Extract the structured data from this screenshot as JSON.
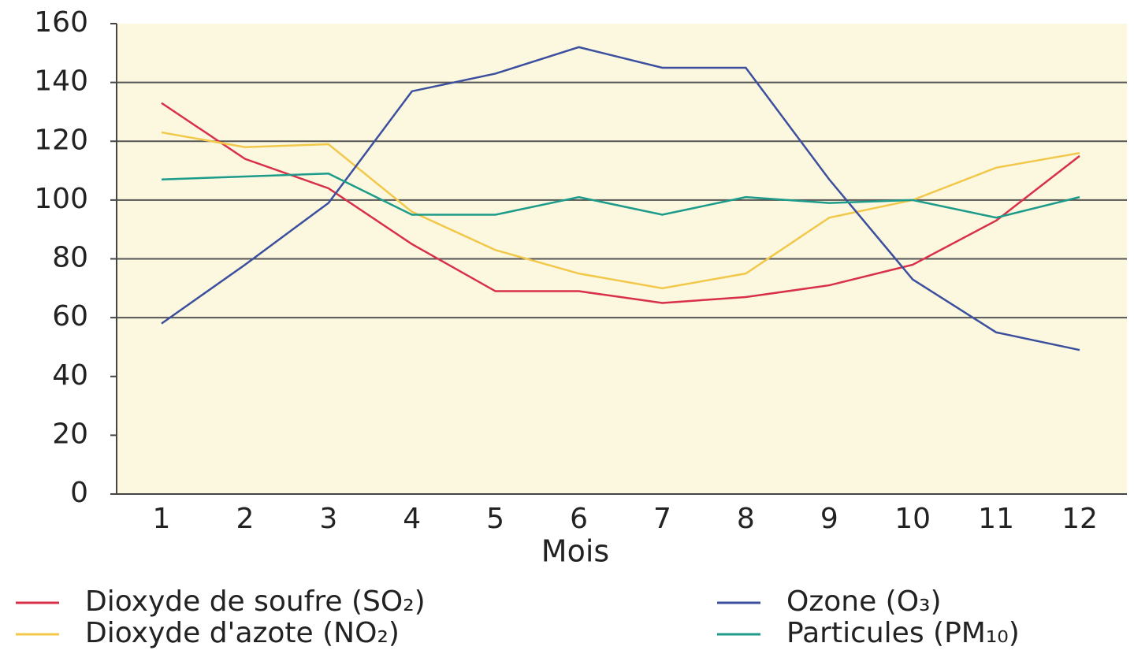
{
  "chart_data": {
    "type": "line",
    "x_label": "Mois",
    "categories": [
      "1",
      "2",
      "3",
      "4",
      "5",
      "6",
      "7",
      "8",
      "9",
      "10",
      "11",
      "12"
    ],
    "ylim": [
      0,
      160
    ],
    "yticks": [
      0,
      20,
      40,
      60,
      80,
      100,
      120,
      140,
      160
    ],
    "grid_lines": [
      60,
      80,
      100,
      120,
      140
    ],
    "series": [
      {
        "name": "Dioxyde de soufre (SO₂)",
        "color": "#d9304a",
        "values": [
          133,
          114,
          104,
          85,
          69,
          69,
          65,
          67,
          71,
          78,
          93,
          115
        ]
      },
      {
        "name": "Dioxyde d'azote (NO₂)",
        "color": "#f2c84b",
        "values": [
          123,
          118,
          119,
          96,
          83,
          75,
          70,
          75,
          94,
          100,
          111,
          116
        ]
      },
      {
        "name": "Ozone (O₃)",
        "color": "#3b4f9e",
        "values": [
          58,
          78,
          99,
          137,
          143,
          152,
          145,
          145,
          107,
          73,
          55,
          49
        ]
      },
      {
        "name": "Particules (PM₁₀)",
        "color": "#1c9a8a",
        "values": [
          107,
          108,
          109,
          95,
          95,
          101,
          95,
          101,
          99,
          100,
          94,
          101
        ]
      }
    ]
  }
}
